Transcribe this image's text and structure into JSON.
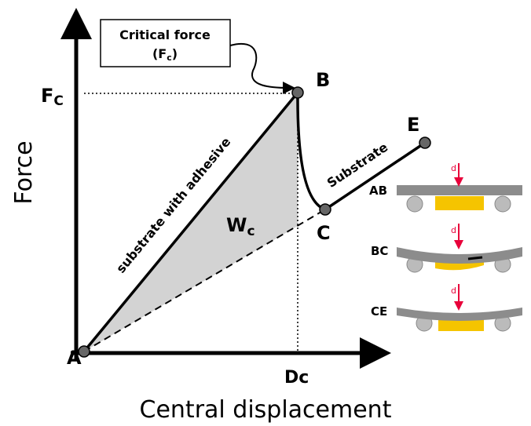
{
  "axes": {
    "y_label": "Force",
    "x_label": "Central displacement"
  },
  "callout": {
    "line1": "Critical force",
    "line2_open": "(F",
    "line2_sub": "c",
    "line2_close": ")"
  },
  "fc_label": {
    "main": "F",
    "sub": "C"
  },
  "dc_label": "Dc",
  "wc_label": {
    "main": "W",
    "sub": "c"
  },
  "points": {
    "a": "A",
    "b": "B",
    "c": "C",
    "e": "E"
  },
  "segments": {
    "adhesive": "substrate with adhesive",
    "substrate": "Substrate"
  },
  "insets": [
    {
      "label": "AB",
      "force": "d"
    },
    {
      "label": "BC",
      "force": "d"
    },
    {
      "label": "CE",
      "force": "d"
    }
  ]
}
